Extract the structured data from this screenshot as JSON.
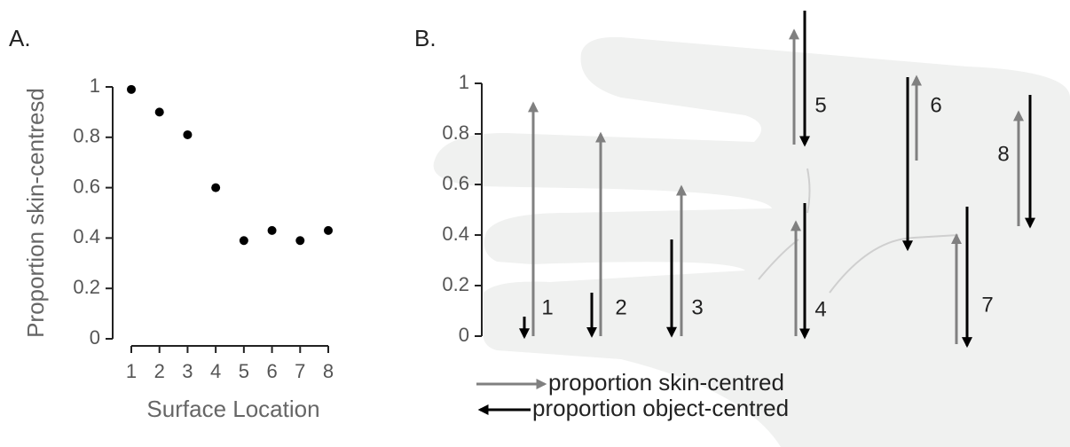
{
  "chart_data": [
    {
      "type": "scatter",
      "panel": "A.",
      "ylabel": "Proportion skin-centresd",
      "xlabel": "Surface Location",
      "x": [
        1,
        2,
        3,
        4,
        5,
        6,
        7,
        8
      ],
      "values": [
        0.99,
        0.9,
        0.81,
        0.6,
        0.39,
        0.43,
        0.39,
        0.43
      ],
      "color": "#000000",
      "xlim": [
        1,
        8
      ],
      "xticks": [
        1,
        2,
        3,
        4,
        5,
        6,
        7,
        8
      ],
      "ylim": [
        0,
        1
      ],
      "yticks": [
        0,
        0.2,
        0.4,
        0.6,
        0.8,
        1
      ]
    },
    {
      "type": "arrow",
      "panel": "B.",
      "categories": [
        "1",
        "2",
        "3",
        "4",
        "5",
        "6",
        "7",
        "8"
      ],
      "series": [
        {
          "name": "proportion skin-centred",
          "color": "#808080",
          "values": [
            0.92,
            0.8,
            0.59,
            0.45,
            0.45,
            0.33,
            0.43,
            0.45
          ]
        },
        {
          "name": "proportion object-centred",
          "color": "#000000",
          "values": [
            0.08,
            0.17,
            0.38,
            0.53,
            0.53,
            0.68,
            0.55,
            0.52
          ]
        }
      ],
      "ylim": [
        0,
        1
      ],
      "yticks": [
        0,
        0.2,
        0.4,
        0.6,
        0.8,
        1
      ]
    }
  ]
}
